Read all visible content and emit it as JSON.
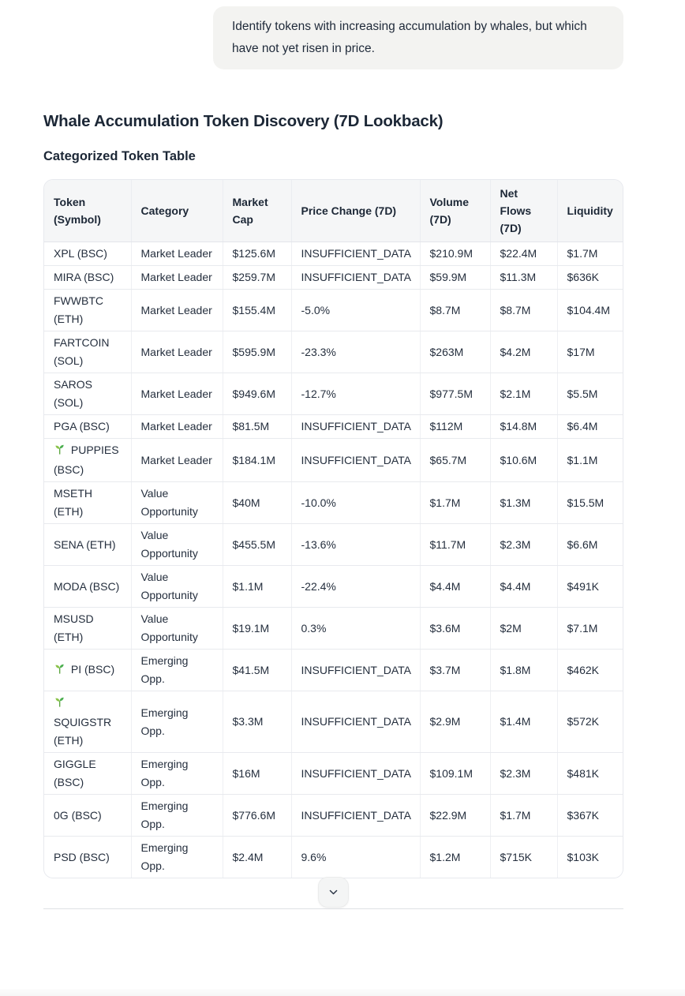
{
  "chat": {
    "user_message": "Identify tokens with increasing accumulation by whales, but which have not yet risen in price."
  },
  "report": {
    "title": "Whale Accumulation Token Discovery (7D Lookback)",
    "subtitle": "Categorized Token Table"
  },
  "table": {
    "columns": [
      "Token (Symbol)",
      "Category",
      "Market Cap",
      "Price Change (7D)",
      "Volume (7D)",
      "Net Flows (7D)",
      "Liquidity"
    ],
    "rows": [
      {
        "token": "XPL (BSC)",
        "seedling": false,
        "category": "Market Leader",
        "market_cap": "$125.6M",
        "price_change": "INSUFFICIENT_DATA",
        "volume": "$210.9M",
        "net_flows": "$22.4M",
        "liquidity": "$1.7M"
      },
      {
        "token": "MIRA (BSC)",
        "seedling": false,
        "category": "Market Leader",
        "market_cap": "$259.7M",
        "price_change": "INSUFFICIENT_DATA",
        "volume": "$59.9M",
        "net_flows": "$11.3M",
        "liquidity": "$636K"
      },
      {
        "token": "FWWBTC (ETH)",
        "seedling": false,
        "category": "Market Leader",
        "market_cap": "$155.4M",
        "price_change": "-5.0%",
        "volume": "$8.7M",
        "net_flows": "$8.7M",
        "liquidity": "$104.4M"
      },
      {
        "token": "FARTCOIN (SOL)",
        "seedling": false,
        "category": "Market Leader",
        "market_cap": "$595.9M",
        "price_change": "-23.3%",
        "volume": "$263M",
        "net_flows": "$4.2M",
        "liquidity": "$17M"
      },
      {
        "token": "SAROS (SOL)",
        "seedling": false,
        "category": "Market Leader",
        "market_cap": "$949.6M",
        "price_change": "-12.7%",
        "volume": "$977.5M",
        "net_flows": "$2.1M",
        "liquidity": "$5.5M"
      },
      {
        "token": "PGA (BSC)",
        "seedling": false,
        "category": "Market Leader",
        "market_cap": "$81.5M",
        "price_change": "INSUFFICIENT_DATA",
        "volume": "$112M",
        "net_flows": "$14.8M",
        "liquidity": "$6.4M"
      },
      {
        "token": "PUPPIES (BSC)",
        "seedling": true,
        "category": "Market Leader",
        "market_cap": "$184.1M",
        "price_change": "INSUFFICIENT_DATA",
        "volume": "$65.7M",
        "net_flows": "$10.6M",
        "liquidity": "$1.1M"
      },
      {
        "token": "MSETH (ETH)",
        "seedling": false,
        "category": "Value Opportunity",
        "market_cap": "$40M",
        "price_change": "-10.0%",
        "volume": "$1.7M",
        "net_flows": "$1.3M",
        "liquidity": "$15.5M"
      },
      {
        "token": "SENA (ETH)",
        "seedling": false,
        "category": "Value Opportunity",
        "market_cap": "$455.5M",
        "price_change": "-13.6%",
        "volume": "$11.7M",
        "net_flows": "$2.3M",
        "liquidity": "$6.6M"
      },
      {
        "token": "MODA (BSC)",
        "seedling": false,
        "category": "Value Opportunity",
        "market_cap": "$1.1M",
        "price_change": "-22.4%",
        "volume": "$4.4M",
        "net_flows": "$4.4M",
        "liquidity": "$491K"
      },
      {
        "token": "MSUSD (ETH)",
        "seedling": false,
        "category": "Value Opportunity",
        "market_cap": "$19.1M",
        "price_change": "0.3%",
        "volume": "$3.6M",
        "net_flows": "$2M",
        "liquidity": "$7.1M"
      },
      {
        "token": "PI (BSC)",
        "seedling": true,
        "category": "Emerging Opp.",
        "market_cap": "$41.5M",
        "price_change": "INSUFFICIENT_DATA",
        "volume": "$3.7M",
        "net_flows": "$1.8M",
        "liquidity": "$462K"
      },
      {
        "token": "SQUIGSTR (ETH)",
        "seedling": true,
        "category": "Emerging Opp.",
        "market_cap": "$3.3M",
        "price_change": "INSUFFICIENT_DATA",
        "volume": "$2.9M",
        "net_flows": "$1.4M",
        "liquidity": "$572K"
      },
      {
        "token": "GIGGLE (BSC)",
        "seedling": false,
        "category": "Emerging Opp.",
        "market_cap": "$16M",
        "price_change": "INSUFFICIENT_DATA",
        "volume": "$109.1M",
        "net_flows": "$2.3M",
        "liquidity": "$481K"
      },
      {
        "token": "0G (BSC)",
        "seedling": false,
        "category": "Emerging Opp.",
        "market_cap": "$776.6M",
        "price_change": "INSUFFICIENT_DATA",
        "volume": "$22.9M",
        "net_flows": "$1.7M",
        "liquidity": "$367K"
      },
      {
        "token": "PSD (BSC)",
        "seedling": false,
        "category": "Emerging Opp.",
        "market_cap": "$2.4M",
        "price_change": "9.6%",
        "volume": "$1.2M",
        "net_flows": "$715K",
        "liquidity": "$103K"
      }
    ]
  },
  "icons": {
    "seedling": "🌱",
    "expand": "chevron-down"
  },
  "colors": {
    "text": "#1e2939",
    "bubble_bg": "#f3f3f1",
    "header_bg": "#f5f6f7",
    "border": "#e8eaee",
    "seedling_light": "#8bc34a",
    "seedling_dark": "#4caf50"
  }
}
